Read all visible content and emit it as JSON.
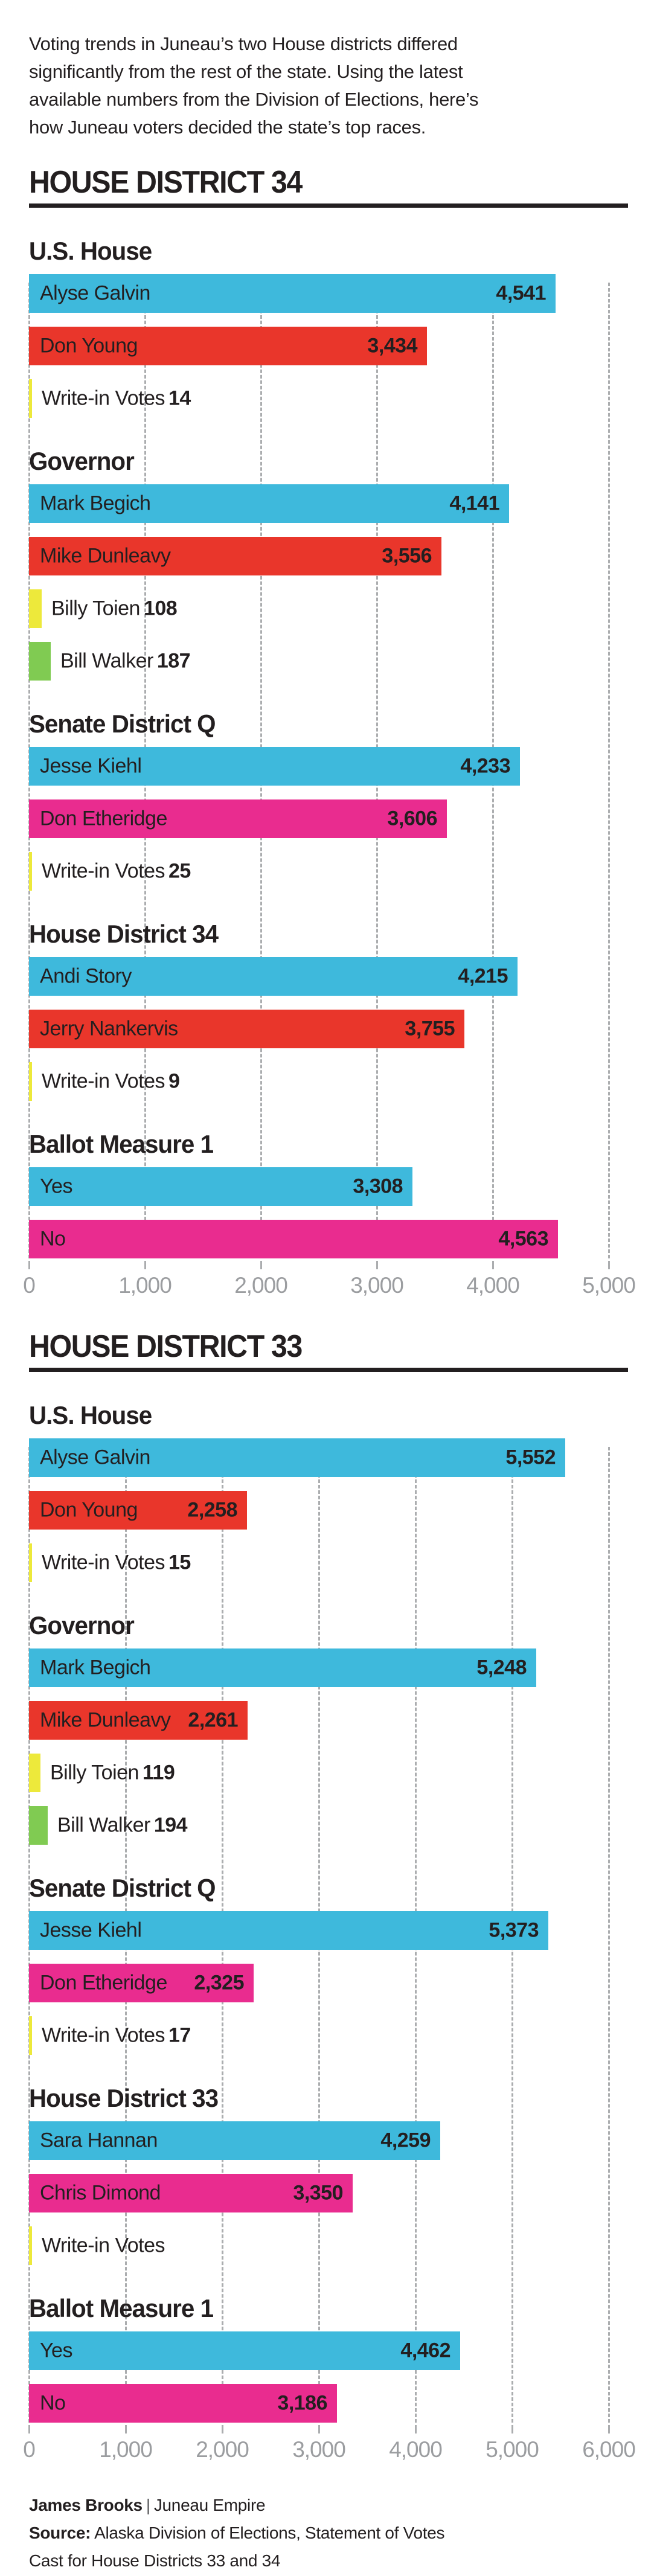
{
  "intro_lines": "Voting trends in Juneau’s two House districts differed\nsignificantly from the rest of the state. Using the latest\navailable numbers from the Division of Elections, here’s\nhow Juneau voters decided the state’s top races.",
  "colors": {
    "blue": "#3EB9DC",
    "red": "#E9362B",
    "magenta": "#E92C8F",
    "yellow": "#EDE93B",
    "green": "#80CB52",
    "text": "#231F20",
    "axis_label": "#9B9DA0",
    "gridline": "#ABADAF"
  },
  "chart_data": [
    {
      "type": "bar",
      "orientation": "horizontal",
      "title": "HOUSE DISTRICT 34",
      "x_axis": {
        "min": 0,
        "max": 5000,
        "tick_labels": [
          "0",
          "1,000",
          "2,000",
          "3,000",
          "4,000",
          "5,000"
        ],
        "grid": true
      },
      "races": [
        {
          "title": "U.S. House",
          "bars": [
            {
              "label": "Alyse Galvin",
              "value": 4541,
              "display": "4,541",
              "color": "blue",
              "style": "large"
            },
            {
              "label": "Don Young",
              "value": 3434,
              "display": "3,434",
              "color": "red",
              "style": "large"
            },
            {
              "label": "Write-in Votes",
              "value": 14,
              "display": "14",
              "color": "yellow",
              "style": "sliver"
            }
          ]
        },
        {
          "title": "Governor",
          "bars": [
            {
              "label": "Mark Begich",
              "value": 4141,
              "display": "4,141",
              "color": "blue",
              "style": "large"
            },
            {
              "label": "Mike Dunleavy",
              "value": 3556,
              "display": "3,556",
              "color": "red",
              "style": "large"
            },
            {
              "label": "Billy Toien",
              "value": 108,
              "display": "108",
              "color": "yellow",
              "style": "small"
            },
            {
              "label": "Bill Walker",
              "value": 187,
              "display": "187",
              "color": "green",
              "style": "small"
            }
          ]
        },
        {
          "title": "Senate District Q",
          "bars": [
            {
              "label": "Jesse Kiehl",
              "value": 4233,
              "display": "4,233",
              "color": "blue",
              "style": "large"
            },
            {
              "label": "Don Etheridge",
              "value": 3606,
              "display": "3,606",
              "color": "magenta",
              "style": "large"
            },
            {
              "label": "Write-in Votes",
              "value": 25,
              "display": "25",
              "color": "yellow",
              "style": "sliver"
            }
          ]
        },
        {
          "title": "House District 34",
          "bars": [
            {
              "label": "Andi Story",
              "value": 4215,
              "display": "4,215",
              "color": "blue",
              "style": "large"
            },
            {
              "label": "Jerry Nankervis",
              "value": 3755,
              "display": "3,755",
              "color": "red",
              "style": "large"
            },
            {
              "label": "Write-in Votes",
              "value": 9,
              "display": "9",
              "color": "yellow",
              "style": "sliver"
            }
          ]
        },
        {
          "title": "Ballot Measure 1",
          "bars": [
            {
              "label": "Yes",
              "value": 3308,
              "display": "3,308",
              "color": "blue",
              "style": "large"
            },
            {
              "label": "No",
              "value": 4563,
              "display": "4,563",
              "color": "magenta",
              "style": "large"
            }
          ]
        }
      ]
    },
    {
      "type": "bar",
      "orientation": "horizontal",
      "title": "HOUSE DISTRICT 33",
      "x_axis": {
        "min": 0,
        "max": 6000,
        "tick_labels": [
          "0",
          "1,000",
          "2,000",
          "3,000",
          "4,000",
          "5,000",
          "6,000"
        ],
        "grid": true
      },
      "races": [
        {
          "title": "U.S. House",
          "bars": [
            {
              "label": "Alyse Galvin",
              "value": 5552,
              "display": "5,552",
              "color": "blue",
              "style": "large"
            },
            {
              "label": "Don Young",
              "value": 2258,
              "display": "2,258",
              "color": "red",
              "style": "large"
            },
            {
              "label": "Write-in Votes",
              "value": 15,
              "display": "15",
              "color": "yellow",
              "style": "sliver"
            }
          ]
        },
        {
          "title": "Governor",
          "bars": [
            {
              "label": "Mark Begich",
              "value": 5248,
              "display": "5,248",
              "color": "blue",
              "style": "large"
            },
            {
              "label": "Mike Dunleavy",
              "value": 2261,
              "display": "2,261",
              "color": "red",
              "style": "large"
            },
            {
              "label": "Billy Toien",
              "value": 119,
              "display": "119",
              "color": "yellow",
              "style": "small"
            },
            {
              "label": "Bill Walker",
              "value": 194,
              "display": "194",
              "color": "green",
              "style": "small"
            }
          ]
        },
        {
          "title": "Senate District Q",
          "bars": [
            {
              "label": "Jesse Kiehl",
              "value": 5373,
              "display": "5,373",
              "color": "blue",
              "style": "large"
            },
            {
              "label": "Don Etheridge",
              "value": 2325,
              "display": "2,325",
              "color": "magenta",
              "style": "large"
            },
            {
              "label": "Write-in Votes",
              "value": 17,
              "display": "17",
              "color": "yellow",
              "style": "sliver"
            }
          ]
        },
        {
          "title": "House District 33",
          "bars": [
            {
              "label": "Sara Hannan",
              "value": 4259,
              "display": "4,259",
              "color": "blue",
              "style": "large"
            },
            {
              "label": "Chris Dimond",
              "value": 3350,
              "display": "3,350",
              "color": "magenta",
              "style": "large"
            },
            {
              "label": "Write-in Votes",
              "value": null,
              "display": null,
              "color": "yellow",
              "style": "sliver"
            }
          ]
        },
        {
          "title": "Ballot Measure 1",
          "bars": [
            {
              "label": "Yes",
              "value": 4462,
              "display": "4,462",
              "color": "blue",
              "style": "large"
            },
            {
              "label": "No",
              "value": 3186,
              "display": "3,186",
              "color": "magenta",
              "style": "large"
            }
          ]
        }
      ]
    }
  ],
  "footer": {
    "byline_name": "James Brooks",
    "byline_separator": "|",
    "byline_org": "Juneau Empire",
    "source_label": "Source:",
    "source_text": "Alaska Division of Elections, Statement of Votes",
    "source_text_line2": "Cast for House Districts 33 and 34"
  }
}
